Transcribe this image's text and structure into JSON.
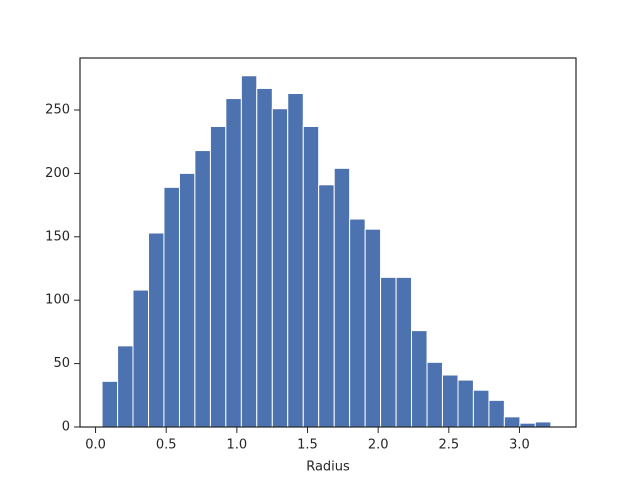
{
  "chart_data": {
    "type": "histogram",
    "xlabel": "Radius",
    "bins": [
      0.046,
      0.156,
      0.265,
      0.375,
      0.484,
      0.594,
      0.703,
      0.813,
      0.922,
      1.032,
      1.141,
      1.251,
      1.36,
      1.47,
      1.579,
      1.689,
      1.798,
      1.908,
      2.017,
      2.127,
      2.236,
      2.346,
      2.455,
      2.565,
      2.674,
      2.784,
      2.893,
      3.003,
      3.112,
      3.222
    ],
    "values": [
      36,
      64,
      108,
      153,
      189,
      200,
      218,
      237,
      259,
      277,
      267,
      251,
      263,
      237,
      191,
      204,
      164,
      156,
      118,
      118,
      76,
      51,
      41,
      37,
      29,
      21,
      8,
      3,
      4
    ],
    "color": "#4c72b0",
    "xlim": [
      -0.11,
      3.4
    ],
    "xticks": [
      {
        "value": 0,
        "label": "0.0"
      },
      {
        "value": 0.5,
        "label": "0.5"
      },
      {
        "value": 1,
        "label": "1.0"
      },
      {
        "value": 1.5,
        "label": "1.5"
      },
      {
        "value": 2,
        "label": "2.0"
      },
      {
        "value": 2.5,
        "label": "2.5"
      },
      {
        "value": 3,
        "label": "3.0"
      }
    ],
    "ylim": [
      0,
      291
    ],
    "yticks": [
      0,
      50,
      100,
      150,
      200,
      250
    ]
  }
}
